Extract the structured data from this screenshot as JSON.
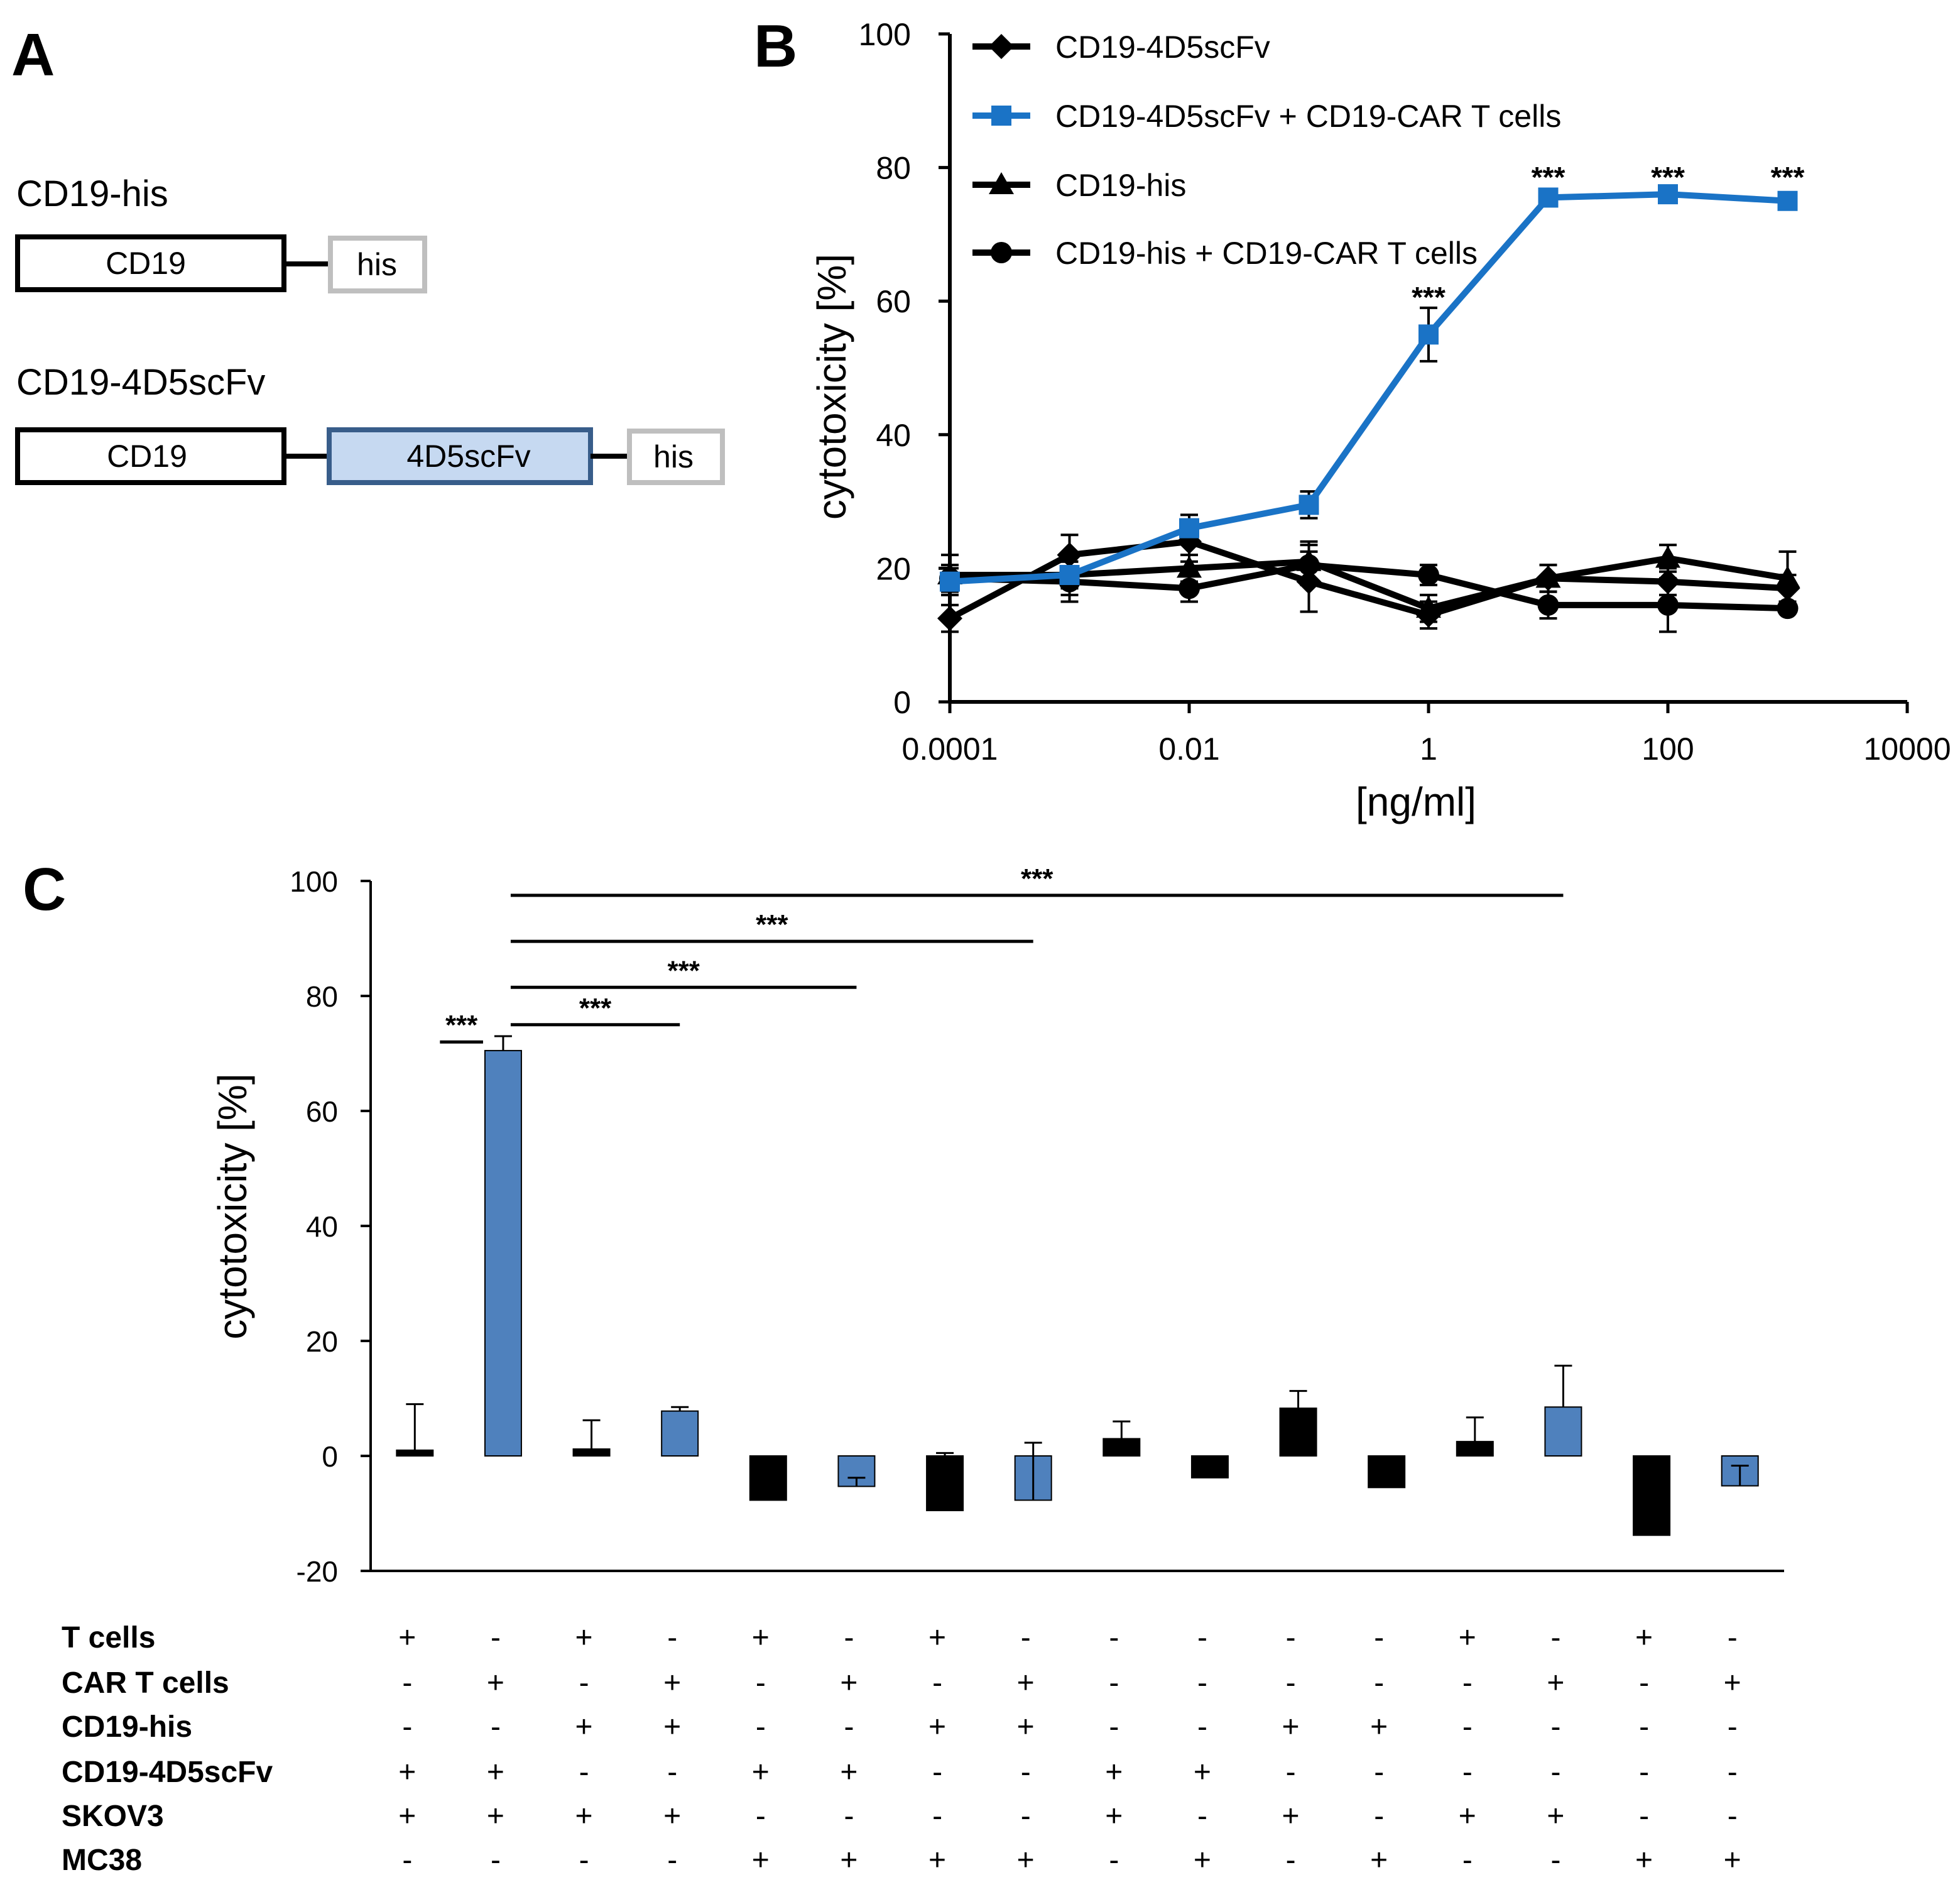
{
  "panels": {
    "A": {
      "label": "A",
      "constructs": [
        {
          "name": "CD19-his",
          "domains": [
            "CD19",
            "his"
          ]
        },
        {
          "name": "CD19-4D5scFv",
          "domains": [
            "CD19",
            "4D5scFv",
            "his"
          ]
        }
      ]
    },
    "B": {
      "label": "B"
    },
    "C": {
      "label": "C"
    }
  },
  "colors": {
    "black": "#000000",
    "blue_line": "#1a73c6",
    "blue_bar": "#4f81bd",
    "scfv_fill": "#c6d9f1",
    "scfv_stroke": "#385d8a",
    "his_stroke": "#bfbfbf"
  },
  "chart_data": [
    {
      "id": "B",
      "type": "line",
      "xscale": "log",
      "x": [
        0.0001,
        0.001,
        0.01,
        0.1,
        1,
        10,
        100,
        1000
      ],
      "xticks": [
        0.0001,
        0.01,
        1,
        100,
        10000
      ],
      "xtick_labels": [
        "0.0001",
        "0.01",
        "1",
        "100",
        "10000"
      ],
      "xlim": [
        0.0001,
        10000
      ],
      "yticks": [
        0,
        20,
        40,
        60,
        80,
        100
      ],
      "ylim": [
        0,
        100
      ],
      "xlabel": "[ng/ml]",
      "ylabel": "cytotoxicity [%]",
      "legend_position": "top-left",
      "series": [
        {
          "name": "CD19-4D5scFv",
          "marker": "diamond",
          "color": "#000000",
          "values": [
            12.5,
            22,
            24,
            18,
            13,
            18.5,
            18,
            17
          ],
          "errors": [
            2,
            3,
            3,
            4.5,
            2,
            2,
            2,
            2
          ]
        },
        {
          "name": "CD19-4D5scFv + CD19-CAR T cells",
          "marker": "square",
          "color": "#1a73c6",
          "values": [
            18,
            19,
            26,
            29.5,
            55,
            75.5,
            76,
            75
          ],
          "errors": [
            2,
            2,
            2,
            2,
            4,
            1,
            0.5,
            0.5
          ]
        },
        {
          "name": "CD19-his",
          "marker": "triangle",
          "color": "#000000",
          "values": [
            19,
            19,
            20,
            21,
            14,
            18.5,
            21.5,
            18.5
          ],
          "errors": [
            3,
            3,
            2,
            3,
            2,
            2,
            2,
            4
          ]
        },
        {
          "name": "CD19-his + CD19-CAR T cells",
          "marker": "circle",
          "color": "#000000",
          "values": [
            18.5,
            18,
            17,
            20.5,
            19,
            14.5,
            14.5,
            14
          ],
          "errors": [
            2,
            3,
            2,
            3,
            1.5,
            2,
            4,
            0.5
          ]
        }
      ],
      "annotations": [
        {
          "text": "***",
          "x": 1,
          "y": 60
        },
        {
          "text": "***",
          "x": 10,
          "y": 78
        },
        {
          "text": "***",
          "x": 100,
          "y": 78
        },
        {
          "text": "***",
          "x": 1000,
          "y": 78
        }
      ]
    },
    {
      "id": "C",
      "type": "bar",
      "ylim": [
        -20,
        100
      ],
      "yticks": [
        -20,
        0,
        20,
        40,
        60,
        80,
        100
      ],
      "ylabel": "cytotoxicity [%]",
      "values": [
        1,
        70.5,
        1.2,
        7.8,
        -7.7,
        -5.3,
        -9.5,
        -7.7,
        3,
        -3.8,
        8.3,
        -5.5,
        2.5,
        8.5,
        -13.8,
        -5.2
      ],
      "errors": [
        8,
        2.5,
        5,
        0.7,
        3.5,
        1.5,
        10,
        10,
        3,
        3,
        3,
        1.8,
        4.2,
        7.2,
        7.7,
        3.5
      ],
      "colors": [
        "black",
        "blue",
        "black",
        "blue",
        "black",
        "blue",
        "black",
        "blue",
        "black",
        "black",
        "black",
        "black",
        "black",
        "blue",
        "black",
        "blue"
      ],
      "significance": [
        {
          "text": "***",
          "from": 0,
          "to": 1,
          "y": 72
        },
        {
          "text": "***",
          "from": 1,
          "to": 3,
          "y": 75
        },
        {
          "text": "***",
          "from": 1,
          "to": 5,
          "y": 81.5
        },
        {
          "text": "***",
          "from": 1,
          "to": 7,
          "y": 89.5
        },
        {
          "text": "***",
          "from": 1,
          "to": 13,
          "y": 97.5
        }
      ],
      "conditions": [
        {
          "label": "T cells",
          "values": [
            "+",
            "-",
            "+",
            "-",
            "+",
            "-",
            "+",
            "-",
            "-",
            "-",
            "-",
            "-",
            "+",
            "-",
            "+",
            "-"
          ]
        },
        {
          "label": "CAR T cells",
          "values": [
            "-",
            "+",
            "-",
            "+",
            "-",
            "+",
            "-",
            "+",
            "-",
            "-",
            "-",
            "-",
            "-",
            "+",
            "-",
            "+"
          ]
        },
        {
          "label": "CD19-his",
          "values": [
            "-",
            "-",
            "+",
            "+",
            "-",
            "-",
            "+",
            "+",
            "-",
            "-",
            "+",
            "+",
            "-",
            "-",
            "-",
            "-"
          ]
        },
        {
          "label": "CD19-4D5scFv",
          "values": [
            "+",
            "+",
            "-",
            "-",
            "+",
            "+",
            "-",
            "-",
            "+",
            "+",
            "-",
            "-",
            "-",
            "-",
            "-",
            "-"
          ]
        },
        {
          "label": "SKOV3",
          "values": [
            "+",
            "+",
            "+",
            "+",
            "-",
            "-",
            "-",
            "-",
            "+",
            "-",
            "+",
            "-",
            "+",
            "+",
            "-",
            "-"
          ]
        },
        {
          "label": "MC38",
          "values": [
            "-",
            "-",
            "-",
            "-",
            "+",
            "+",
            "+",
            "+",
            "-",
            "+",
            "-",
            "+",
            "-",
            "-",
            "+",
            "+"
          ]
        }
      ]
    }
  ]
}
